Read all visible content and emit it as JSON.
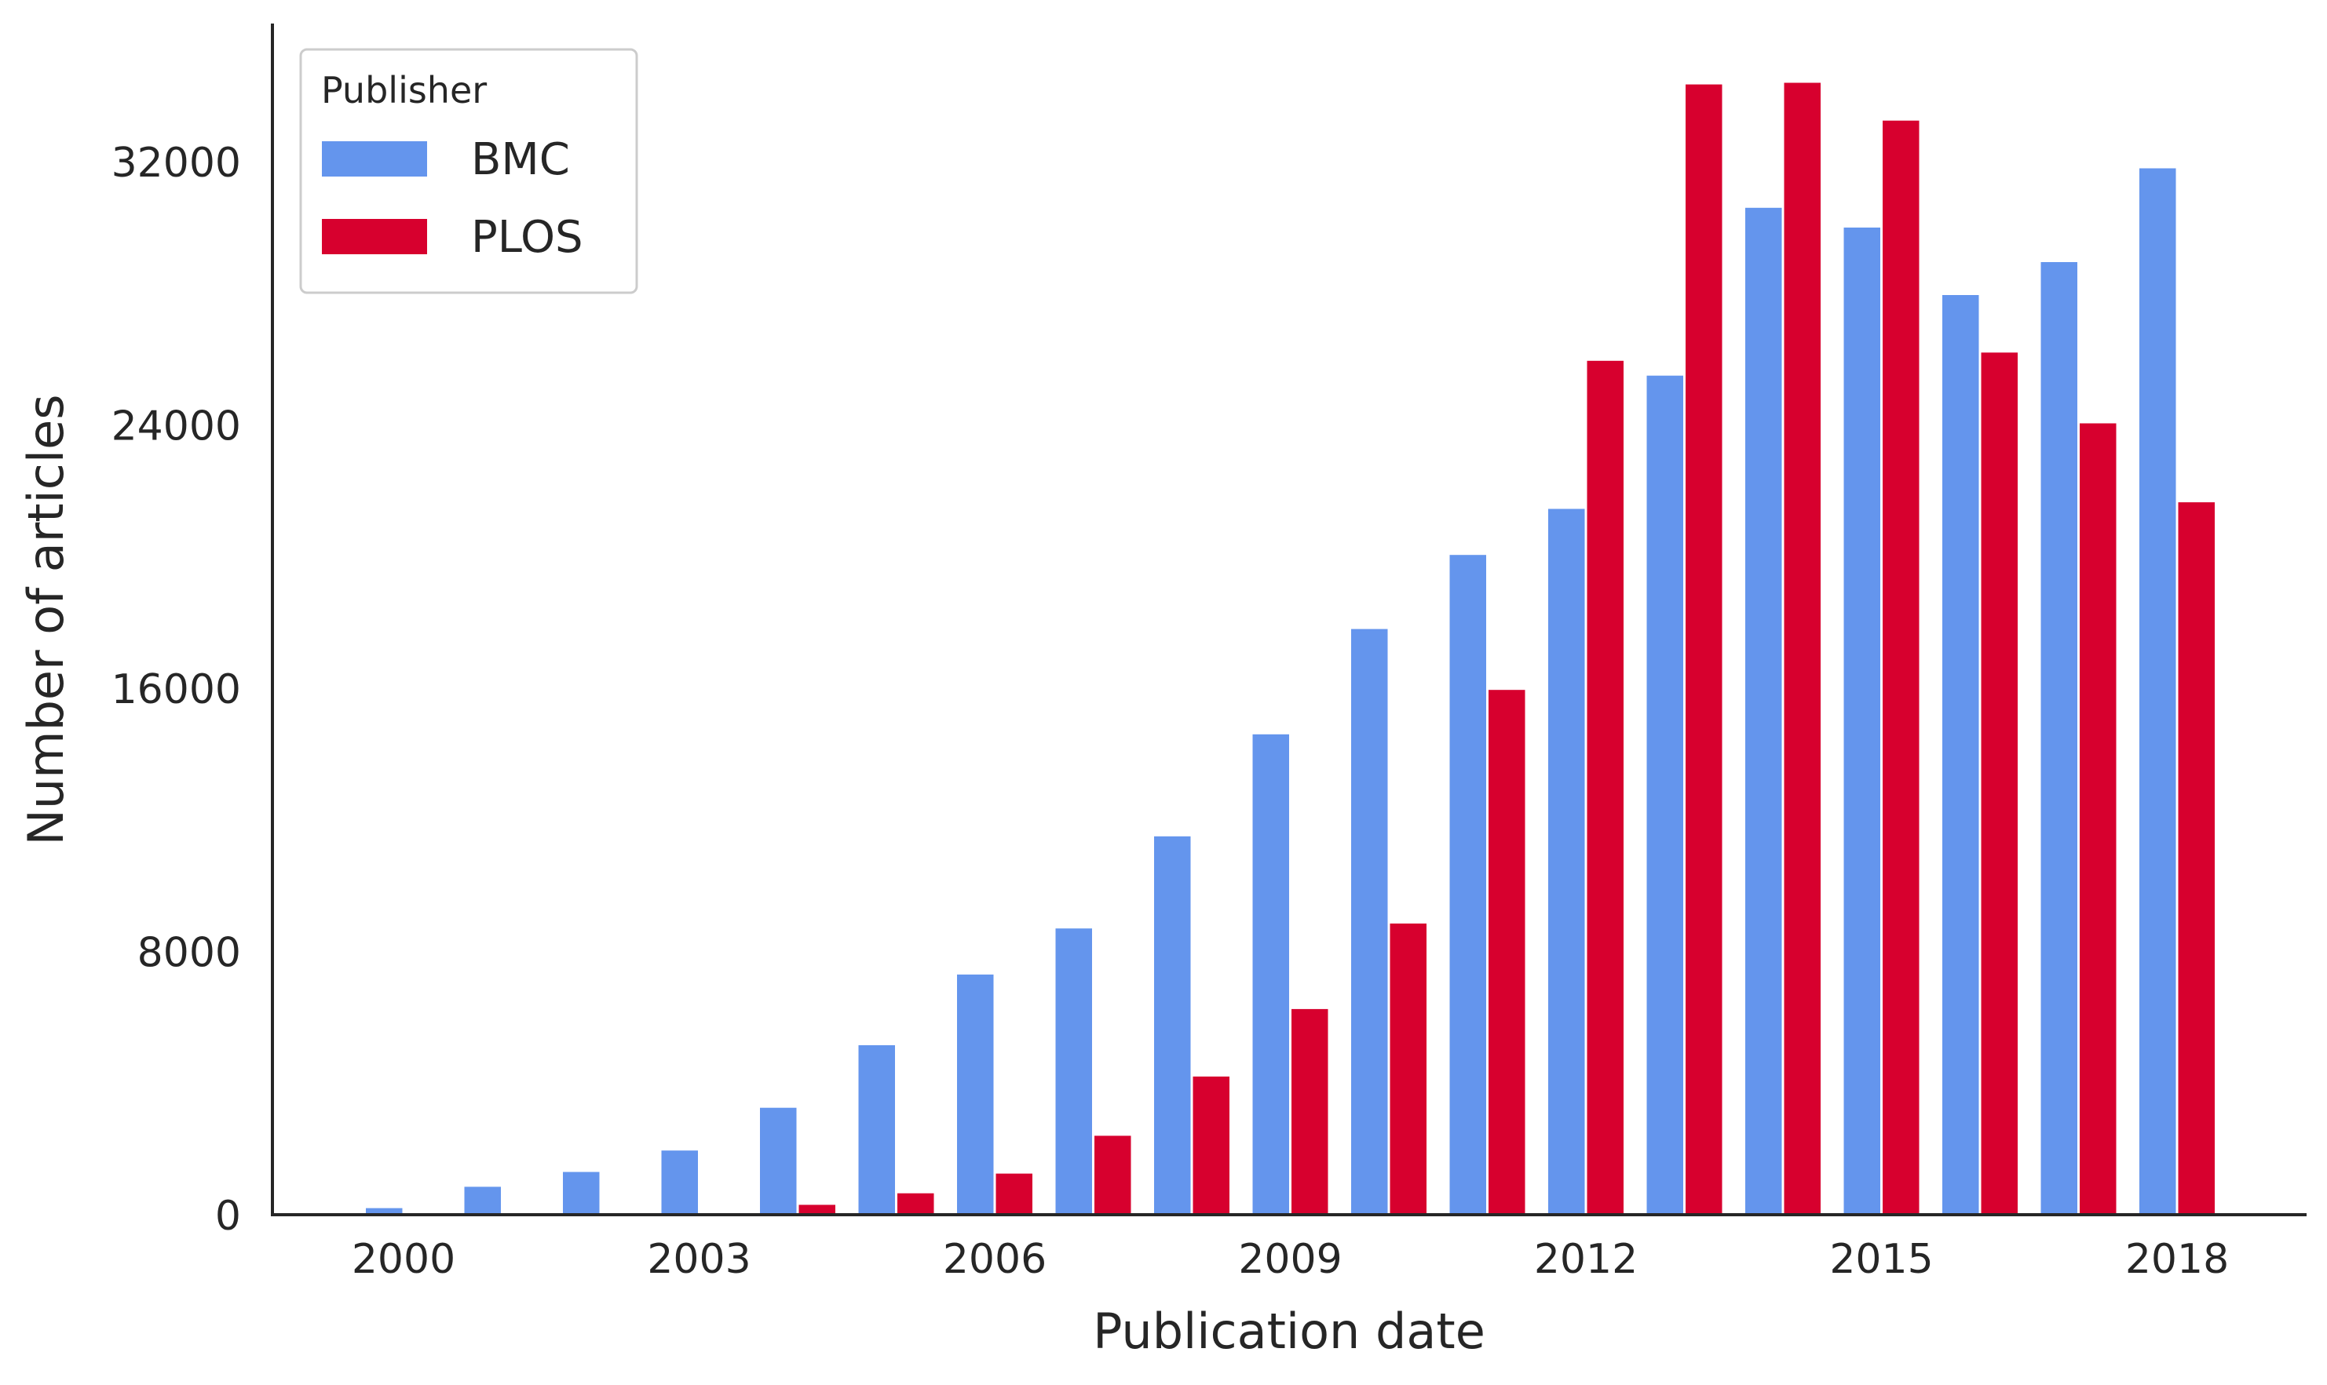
{
  "chart_data": {
    "type": "bar",
    "categories": [
      "2000",
      "2001",
      "2002",
      "2003",
      "2004",
      "2005",
      "2006",
      "2007",
      "2008",
      "2009",
      "2010",
      "2011",
      "2012",
      "2013",
      "2014",
      "2015",
      "2016",
      "2017",
      "2018"
    ],
    "x_tick_labels": [
      "2000",
      "2003",
      "2006",
      "2009",
      "2012",
      "2015",
      "2018"
    ],
    "series": [
      {
        "name": "BMC",
        "color": "#6495ED",
        "values": [
          200,
          850,
          1300,
          1950,
          3250,
          5150,
          7300,
          8700,
          11500,
          14600,
          17800,
          20050,
          21450,
          25500,
          30600,
          30000,
          27950,
          28950,
          31800
        ]
      },
      {
        "name": "PLOS",
        "color": "#D7002E",
        "values": [
          0,
          0,
          0,
          0,
          300,
          650,
          1250,
          2400,
          4200,
          6250,
          8850,
          15950,
          25950,
          34350,
          34400,
          33250,
          26200,
          24050,
          21650
        ]
      }
    ],
    "xlabel": "Publication date",
    "ylabel": "Number of articles",
    "ylim": [
      0,
      36200
    ],
    "yticks": [
      0,
      8000,
      16000,
      24000,
      32000
    ],
    "grid": false,
    "legend": {
      "title": "Publisher",
      "placement": "top-left",
      "entries": [
        "BMC",
        "PLOS"
      ]
    }
  }
}
